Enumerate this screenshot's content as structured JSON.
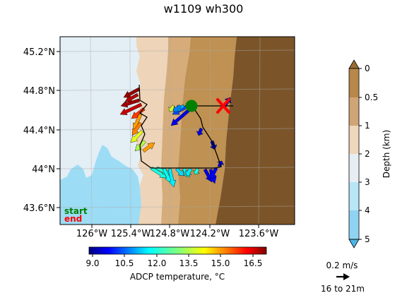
{
  "title": "w1109 wh300",
  "map": {
    "lat_ticks": [
      "45.2°N",
      "44.8°N",
      "44.4°N",
      "44°N",
      "43.6°N"
    ],
    "lon_ticks": [
      "126°W",
      "125.4°W",
      "124.8°W",
      "124.2°W",
      "123.6°W"
    ],
    "start_label": "start",
    "end_label": "end",
    "colors": {
      "deep_sea": "#9ddcf5",
      "mid_sea": "#e3eef5",
      "shelf": "#eed4b8",
      "slope": "#d5ac7a",
      "upper": "#bf9152",
      "land": "#7b5529",
      "start_marker": "#008000",
      "end_marker": "#ff0000"
    }
  },
  "depth_colorbar": {
    "label": "Depth (km)",
    "ticks": [
      "0",
      "0.5",
      "1",
      "2",
      "3",
      "4",
      "5"
    ],
    "colors": [
      "#b8874a",
      "#cfa577",
      "#efd6bc",
      "#e6eef4",
      "#b8e6f7",
      "#8fd3f2",
      "#4db5e6"
    ]
  },
  "temp_colorbar": {
    "label": "ADCP temperature, °C",
    "ticks": [
      "9.0",
      "10.5",
      "12.0",
      "13.5",
      "15.0",
      "16.5"
    ],
    "range": [
      8.7,
      17.0
    ]
  },
  "legend": {
    "speed": "0.2 m/s",
    "depth_range": "16 to 21m"
  }
}
